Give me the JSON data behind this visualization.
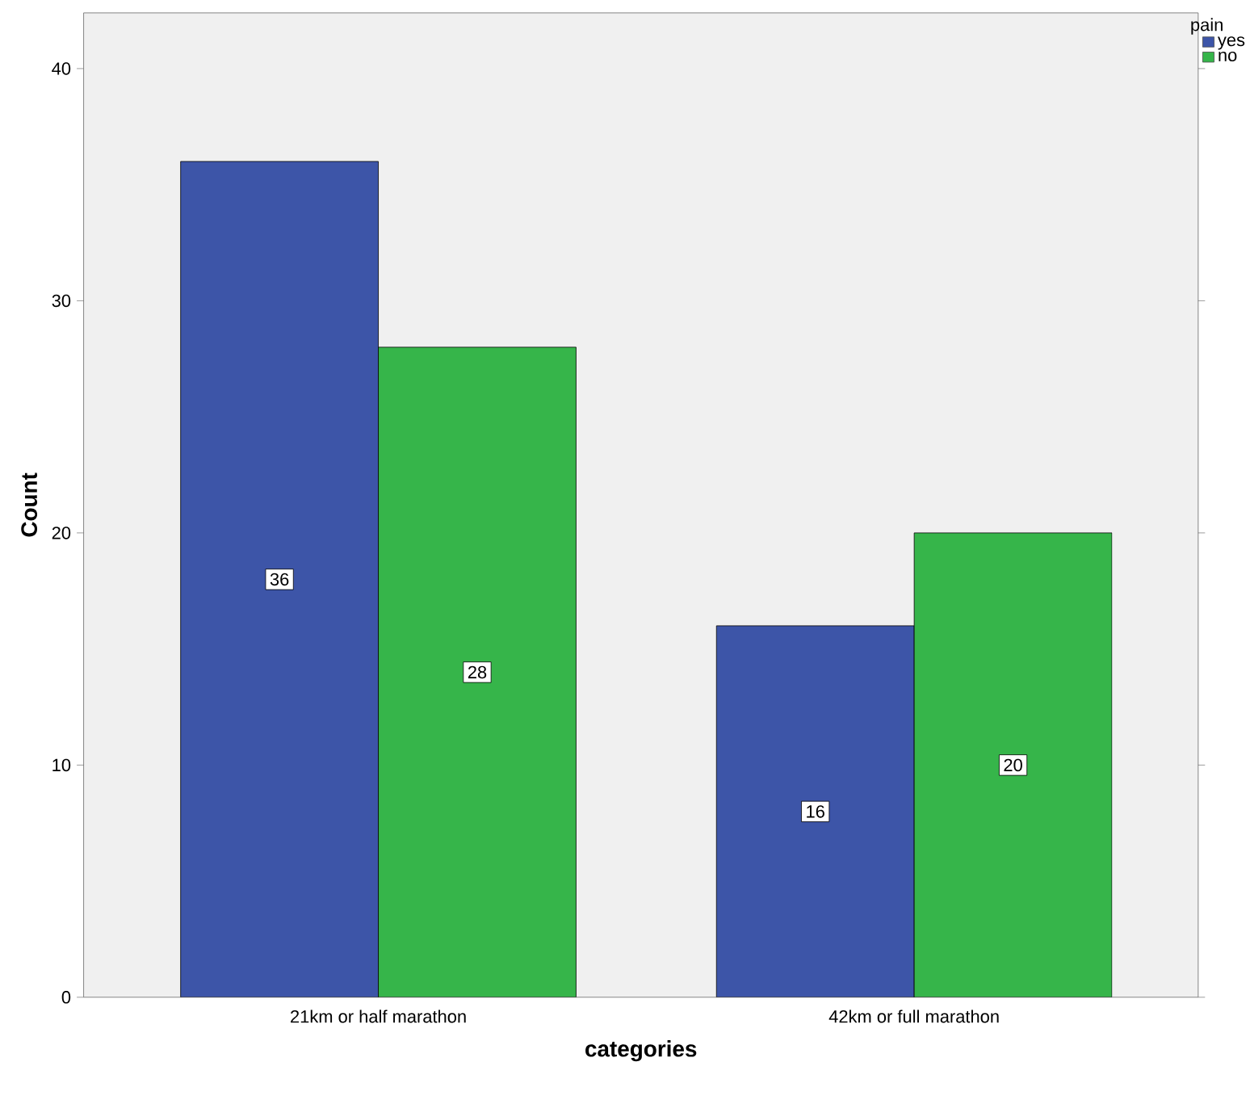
{
  "chart_data": {
    "type": "bar",
    "xlabel": "categories",
    "ylabel": "Count",
    "legend_title": "pain",
    "categories": [
      "21km or half marathon",
      "42km or full marathon"
    ],
    "series": [
      {
        "name": "yes",
        "color": "#3d55a8",
        "values": [
          36,
          16
        ]
      },
      {
        "name": "no",
        "color": "#36b54a",
        "values": [
          28,
          20
        ]
      }
    ],
    "ylim": [
      0,
      42.4
    ],
    "yticks": [
      0,
      10,
      20,
      30,
      40
    ],
    "grid": false,
    "legend": "top right",
    "data_labels": true
  }
}
